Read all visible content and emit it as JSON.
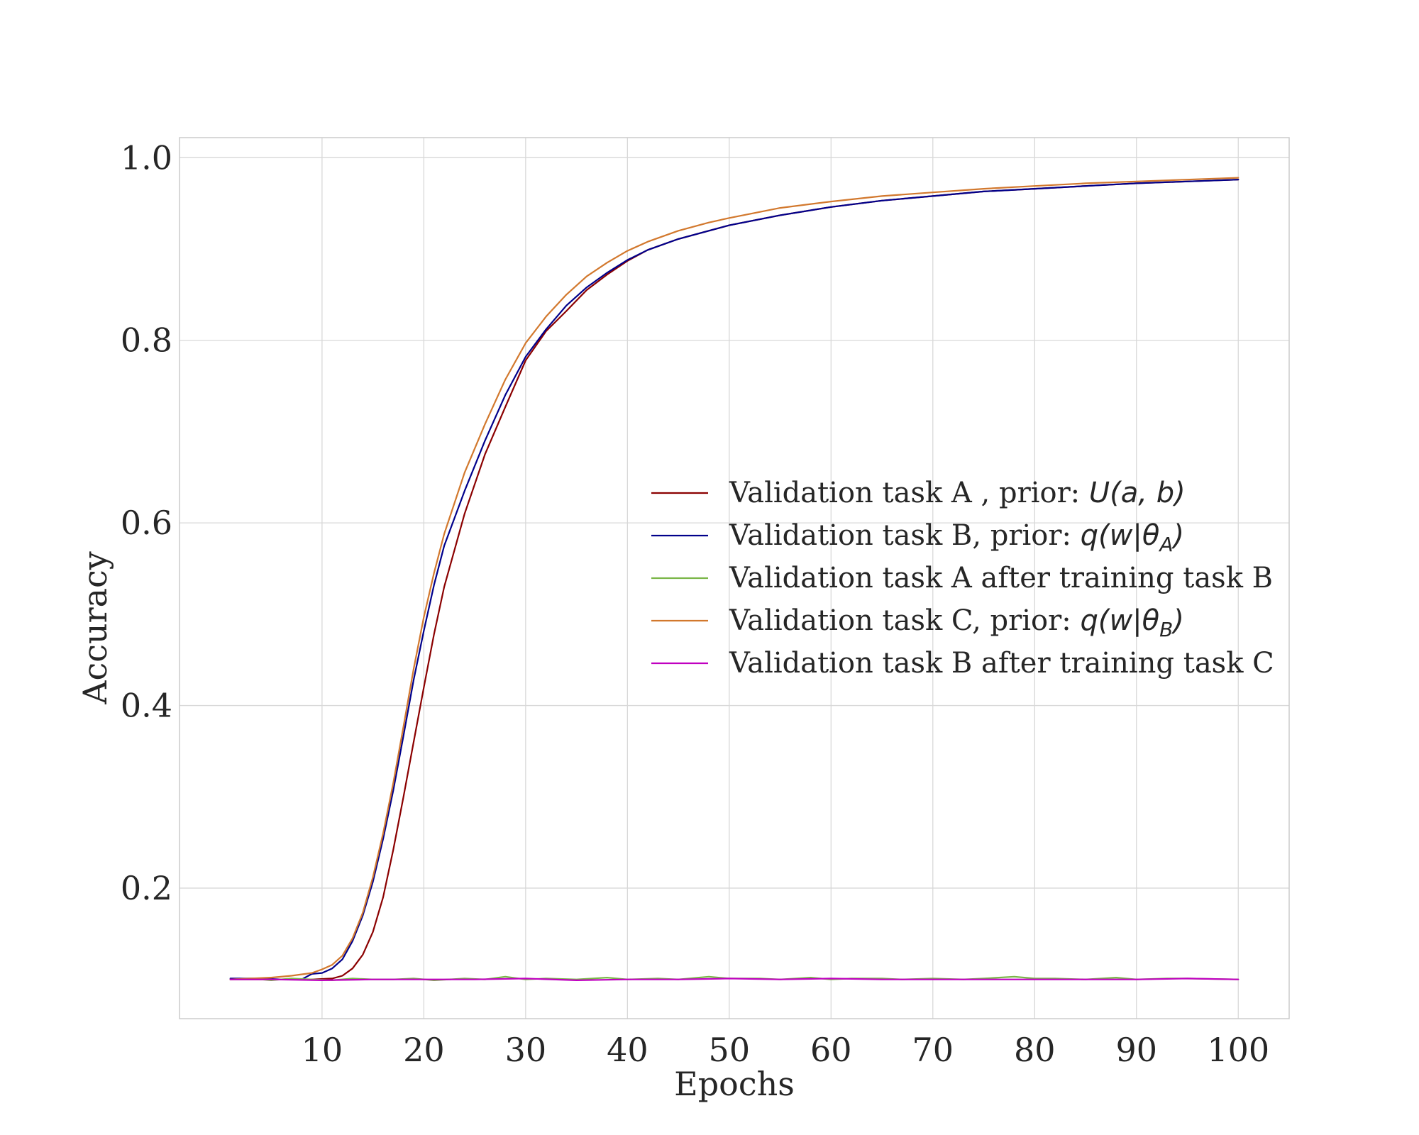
{
  "chart_data": {
    "type": "line",
    "xlabel": "Epochs",
    "ylabel": "Accuracy",
    "xlim": [
      -4,
      105
    ],
    "ylim": [
      0.057,
      1.022
    ],
    "xticks": [
      10,
      20,
      30,
      40,
      50,
      60,
      70,
      80,
      90,
      100
    ],
    "xtick_labels": [
      "10",
      "20",
      "30",
      "40",
      "50",
      "60",
      "70",
      "80",
      "90",
      "100"
    ],
    "yticks": [
      0.2,
      0.4,
      0.6,
      0.8,
      1.0
    ],
    "ytick_labels": [
      "0.2",
      "0.4",
      "0.6",
      "0.8",
      "1.0"
    ],
    "grid": true,
    "legend_position": "center-right",
    "series": [
      {
        "name": "Validation task A , prior: U(a,b)",
        "legend_prefix": "Validation task A , prior: ",
        "legend_math": "U(a, b)",
        "color": "#8b0000",
        "points": [
          [
            1,
            0.1
          ],
          [
            5,
            0.1
          ],
          [
            9,
            0.1
          ],
          [
            11,
            0.101
          ],
          [
            12,
            0.104
          ],
          [
            13,
            0.112
          ],
          [
            14,
            0.127
          ],
          [
            15,
            0.152
          ],
          [
            16,
            0.19
          ],
          [
            17,
            0.242
          ],
          [
            18,
            0.3
          ],
          [
            19,
            0.36
          ],
          [
            20,
            0.42
          ],
          [
            21,
            0.478
          ],
          [
            22,
            0.53
          ],
          [
            24,
            0.61
          ],
          [
            26,
            0.675
          ],
          [
            28,
            0.727
          ],
          [
            30,
            0.778
          ],
          [
            32,
            0.81
          ],
          [
            34,
            0.832
          ],
          [
            36,
            0.855
          ],
          [
            38,
            0.872
          ],
          [
            40,
            0.887
          ],
          [
            42,
            0.899
          ],
          [
            45,
            0.911
          ],
          [
            48,
            0.92
          ],
          [
            50,
            0.926
          ],
          [
            55,
            0.937
          ],
          [
            60,
            0.946
          ],
          [
            65,
            0.953
          ],
          [
            70,
            0.958
          ],
          [
            75,
            0.963
          ],
          [
            80,
            0.966
          ],
          [
            85,
            0.969
          ],
          [
            90,
            0.972
          ],
          [
            95,
            0.974
          ],
          [
            100,
            0.976
          ]
        ]
      },
      {
        "name": "Validation task B, prior: q(w|θA)",
        "legend_prefix": "Validation task B, prior: ",
        "legend_math": "q(w|θ",
        "legend_sub": "A",
        "color": "#00008b",
        "points": [
          [
            1,
            0.101
          ],
          [
            4,
            0.101
          ],
          [
            6,
            0.1
          ],
          [
            8,
            0.1
          ],
          [
            9,
            0.106
          ],
          [
            10,
            0.107
          ],
          [
            11,
            0.112
          ],
          [
            12,
            0.122
          ],
          [
            13,
            0.142
          ],
          [
            14,
            0.17
          ],
          [
            15,
            0.207
          ],
          [
            16,
            0.254
          ],
          [
            17,
            0.307
          ],
          [
            18,
            0.367
          ],
          [
            19,
            0.428
          ],
          [
            20,
            0.482
          ],
          [
            21,
            0.532
          ],
          [
            22,
            0.575
          ],
          [
            24,
            0.635
          ],
          [
            26,
            0.69
          ],
          [
            28,
            0.74
          ],
          [
            30,
            0.782
          ],
          [
            32,
            0.812
          ],
          [
            34,
            0.838
          ],
          [
            36,
            0.858
          ],
          [
            38,
            0.874
          ],
          [
            40,
            0.888
          ],
          [
            42,
            0.899
          ],
          [
            45,
            0.911
          ],
          [
            48,
            0.92
          ],
          [
            50,
            0.926
          ],
          [
            55,
            0.937
          ],
          [
            60,
            0.946
          ],
          [
            65,
            0.953
          ],
          [
            70,
            0.958
          ],
          [
            75,
            0.963
          ],
          [
            80,
            0.966
          ],
          [
            85,
            0.969
          ],
          [
            90,
            0.972
          ],
          [
            95,
            0.974
          ],
          [
            100,
            0.976
          ]
        ]
      },
      {
        "name": "Validation task A after training task B",
        "legend_prefix": "Validation task A after training task B",
        "color": "#7ab648",
        "points": [
          [
            1,
            0.1
          ],
          [
            3,
            0.101
          ],
          [
            5,
            0.099
          ],
          [
            7,
            0.101
          ],
          [
            9,
            0.1
          ],
          [
            11,
            0.099
          ],
          [
            13,
            0.101
          ],
          [
            15,
            0.1
          ],
          [
            17,
            0.1
          ],
          [
            19,
            0.101
          ],
          [
            21,
            0.099
          ],
          [
            24,
            0.101
          ],
          [
            26,
            0.1
          ],
          [
            28,
            0.103
          ],
          [
            30,
            0.1
          ],
          [
            32,
            0.101
          ],
          [
            35,
            0.1
          ],
          [
            38,
            0.102
          ],
          [
            40,
            0.1
          ],
          [
            43,
            0.101
          ],
          [
            45,
            0.1
          ],
          [
            48,
            0.103
          ],
          [
            50,
            0.101
          ],
          [
            53,
            0.101
          ],
          [
            55,
            0.1
          ],
          [
            58,
            0.102
          ],
          [
            60,
            0.1
          ],
          [
            62,
            0.101
          ],
          [
            65,
            0.101
          ],
          [
            67,
            0.1
          ],
          [
            70,
            0.101
          ],
          [
            73,
            0.1
          ],
          [
            75,
            0.101
          ],
          [
            78,
            0.103
          ],
          [
            80,
            0.101
          ],
          [
            82,
            0.101
          ],
          [
            85,
            0.1
          ],
          [
            88,
            0.102
          ],
          [
            90,
            0.1
          ],
          [
            93,
            0.101
          ],
          [
            95,
            0.101
          ],
          [
            100,
            0.1
          ]
        ]
      },
      {
        "name": "Validation task C, prior: q(w|θB)",
        "legend_prefix": "Validation task C, prior: ",
        "legend_math": "q(w|θ",
        "legend_sub": "B",
        "color": "#d2782d",
        "points": [
          [
            1,
            0.1
          ],
          [
            3,
            0.101
          ],
          [
            5,
            0.102
          ],
          [
            7,
            0.104
          ],
          [
            9,
            0.107
          ],
          [
            10,
            0.111
          ],
          [
            11,
            0.116
          ],
          [
            12,
            0.126
          ],
          [
            13,
            0.145
          ],
          [
            14,
            0.173
          ],
          [
            15,
            0.212
          ],
          [
            16,
            0.26
          ],
          [
            17,
            0.315
          ],
          [
            18,
            0.377
          ],
          [
            19,
            0.44
          ],
          [
            20,
            0.497
          ],
          [
            21,
            0.545
          ],
          [
            22,
            0.588
          ],
          [
            24,
            0.655
          ],
          [
            26,
            0.708
          ],
          [
            28,
            0.757
          ],
          [
            30,
            0.797
          ],
          [
            32,
            0.826
          ],
          [
            34,
            0.85
          ],
          [
            36,
            0.87
          ],
          [
            38,
            0.885
          ],
          [
            40,
            0.898
          ],
          [
            42,
            0.908
          ],
          [
            45,
            0.92
          ],
          [
            48,
            0.929
          ],
          [
            50,
            0.934
          ],
          [
            55,
            0.945
          ],
          [
            60,
            0.952
          ],
          [
            65,
            0.958
          ],
          [
            70,
            0.962
          ],
          [
            75,
            0.966
          ],
          [
            80,
            0.969
          ],
          [
            85,
            0.972
          ],
          [
            90,
            0.974
          ],
          [
            95,
            0.976
          ],
          [
            100,
            0.978
          ]
        ]
      },
      {
        "name": "Validation task B after training task C",
        "legend_prefix": "Validation task B after training task C",
        "color": "#c000c0",
        "points": [
          [
            1,
            0.1
          ],
          [
            5,
            0.1
          ],
          [
            10,
            0.099
          ],
          [
            15,
            0.1
          ],
          [
            20,
            0.1
          ],
          [
            25,
            0.1
          ],
          [
            30,
            0.101
          ],
          [
            35,
            0.099
          ],
          [
            40,
            0.1
          ],
          [
            45,
            0.1
          ],
          [
            50,
            0.101
          ],
          [
            55,
            0.1
          ],
          [
            60,
            0.101
          ],
          [
            65,
            0.1
          ],
          [
            70,
            0.1
          ],
          [
            75,
            0.1
          ],
          [
            80,
            0.1
          ],
          [
            85,
            0.1
          ],
          [
            90,
            0.1
          ],
          [
            95,
            0.101
          ],
          [
            100,
            0.1
          ]
        ]
      }
    ]
  }
}
